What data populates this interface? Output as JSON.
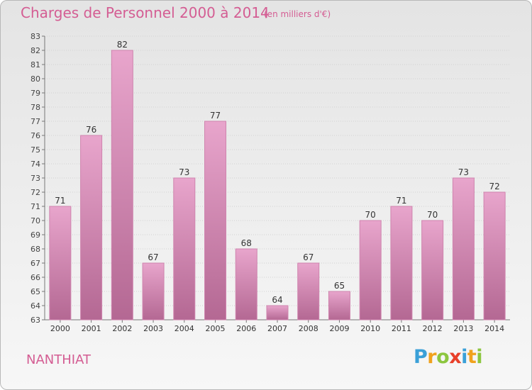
{
  "header": {
    "title": "Charges de Personnel 2000 à 2014",
    "unit": "(en milliers d'€)"
  },
  "place": "NANTHIAT",
  "brand": {
    "letters": [
      "P",
      "r",
      "o",
      "x",
      "i",
      "t",
      "i"
    ],
    "colors": [
      "#3aa0d8",
      "#f0a21d",
      "#8cc63f",
      "#e8402a",
      "#3aa0d8",
      "#f0a21d",
      "#8cc63f"
    ]
  },
  "colors": {
    "title": "#d45d93",
    "bar_top": "#e8a5cc",
    "bar_bottom": "#b46893"
  },
  "chart_data": {
    "type": "bar",
    "categories": [
      "2000",
      "2001",
      "2002",
      "2003",
      "2004",
      "2005",
      "2006",
      "2007",
      "2008",
      "2009",
      "2010",
      "2011",
      "2012",
      "2013",
      "2014"
    ],
    "values": [
      71,
      76,
      82,
      67,
      73,
      77,
      68,
      64,
      67,
      65,
      70,
      71,
      70,
      73,
      72
    ],
    "ylim": [
      63,
      83
    ],
    "yticks": [
      63,
      64,
      65,
      66,
      67,
      68,
      69,
      70,
      71,
      72,
      73,
      74,
      75,
      76,
      77,
      78,
      79,
      80,
      81,
      82,
      83
    ],
    "grid": true
  }
}
